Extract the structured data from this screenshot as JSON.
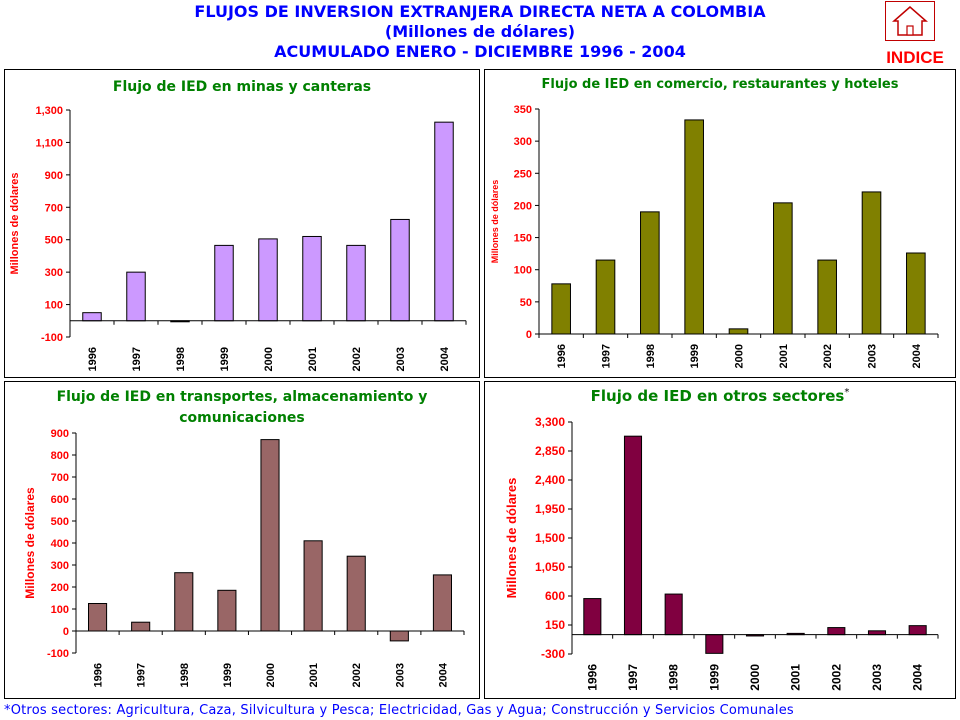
{
  "header": {
    "line1": "FLUJOS DE INVERSION EXTRANJERA DIRECTA NETA A COLOMBIA",
    "line2": "(Millones de dólares)",
    "line3": "ACUMULADO ENERO - DICIEMBRE 1996 - 2004"
  },
  "nav": {
    "indice_label": "INDICE",
    "icon": "home-icon",
    "accent": "#c00000"
  },
  "footnote": "*Otros sectores: Agricultura, Caza, Silvicultura y Pesca; Electricidad, Gas y Agua; Construcción y Servicios Comunales",
  "chart_data": [
    {
      "type": "bar",
      "title": "Flujo de IED en minas y canteras",
      "ylabel": "Millones de dólares",
      "categories": [
        "1996",
        "1997",
        "1998",
        "1999",
        "2000",
        "2001",
        "2002",
        "2003",
        "2004"
      ],
      "values": [
        50,
        300,
        -5,
        465,
        505,
        520,
        465,
        625,
        1225
      ],
      "ylim": [
        -100,
        1300
      ],
      "yticks": [
        -100,
        100,
        300,
        500,
        700,
        900,
        1100,
        1300
      ],
      "ytick_labels": [
        "-100",
        "100",
        "300",
        "500",
        "700",
        "900",
        "1,100",
        "1,300"
      ],
      "bar_color": "#cc99ff",
      "ylabel_color": "#ff0000",
      "title_color": "#008000"
    },
    {
      "type": "bar",
      "title": "Flujo de IED en comercio, restaurantes y hoteles",
      "ylabel": "Millones de dólares",
      "categories": [
        "1996",
        "1997",
        "1998",
        "1999",
        "2000",
        "2001",
        "2002",
        "2003",
        "2004"
      ],
      "values": [
        78,
        115,
        190,
        333,
        8,
        204,
        115,
        221,
        126
      ],
      "ylim": [
        0,
        350
      ],
      "yticks": [
        0,
        50,
        100,
        150,
        200,
        250,
        300,
        350
      ],
      "ytick_labels": [
        "0",
        "50",
        "100",
        "150",
        "200",
        "250",
        "300",
        "350"
      ],
      "bar_color": "#808000",
      "ylabel_color": "#ff0000",
      "title_color": "#008000"
    },
    {
      "type": "bar",
      "title": "Flujo de IED en transportes, almacenamiento y comunicaciones",
      "title_lines": [
        "Flujo de IED en transportes, almacenamiento y",
        "comunicaciones"
      ],
      "ylabel": "Millones de dólares",
      "categories": [
        "1996",
        "1997",
        "1998",
        "1999",
        "2000",
        "2001",
        "2002",
        "2003",
        "2004"
      ],
      "values": [
        125,
        40,
        265,
        185,
        870,
        410,
        340,
        -45,
        255
      ],
      "ylim": [
        -100,
        900
      ],
      "yticks": [
        -100,
        0,
        100,
        200,
        300,
        400,
        500,
        600,
        700,
        800,
        900
      ],
      "ytick_labels": [
        "-100",
        "0",
        "100",
        "200",
        "300",
        "400",
        "500",
        "600",
        "700",
        "800",
        "900"
      ],
      "bar_color": "#996666",
      "ylabel_color": "#ff0000",
      "title_color": "#008000"
    },
    {
      "type": "bar",
      "title": "Flujo de IED en otros sectores",
      "title_mark": "*",
      "ylabel": "Millones de dólares",
      "categories": [
        "1996",
        "1997",
        "1998",
        "1999",
        "2000",
        "2001",
        "2002",
        "2003",
        "2004"
      ],
      "values": [
        560,
        3080,
        630,
        -290,
        -20,
        20,
        110,
        60,
        140
      ],
      "ylim": [
        -300,
        3300
      ],
      "yticks": [
        -300,
        150,
        600,
        1050,
        1500,
        1950,
        2400,
        2850,
        3300
      ],
      "ytick_labels": [
        "-300",
        "150",
        "600",
        "1,050",
        "1,500",
        "1,950",
        "2,400",
        "2,850",
        "3,300"
      ],
      "bar_color": "#800040",
      "ylabel_color": "#ff0000",
      "title_color": "#008000"
    }
  ]
}
